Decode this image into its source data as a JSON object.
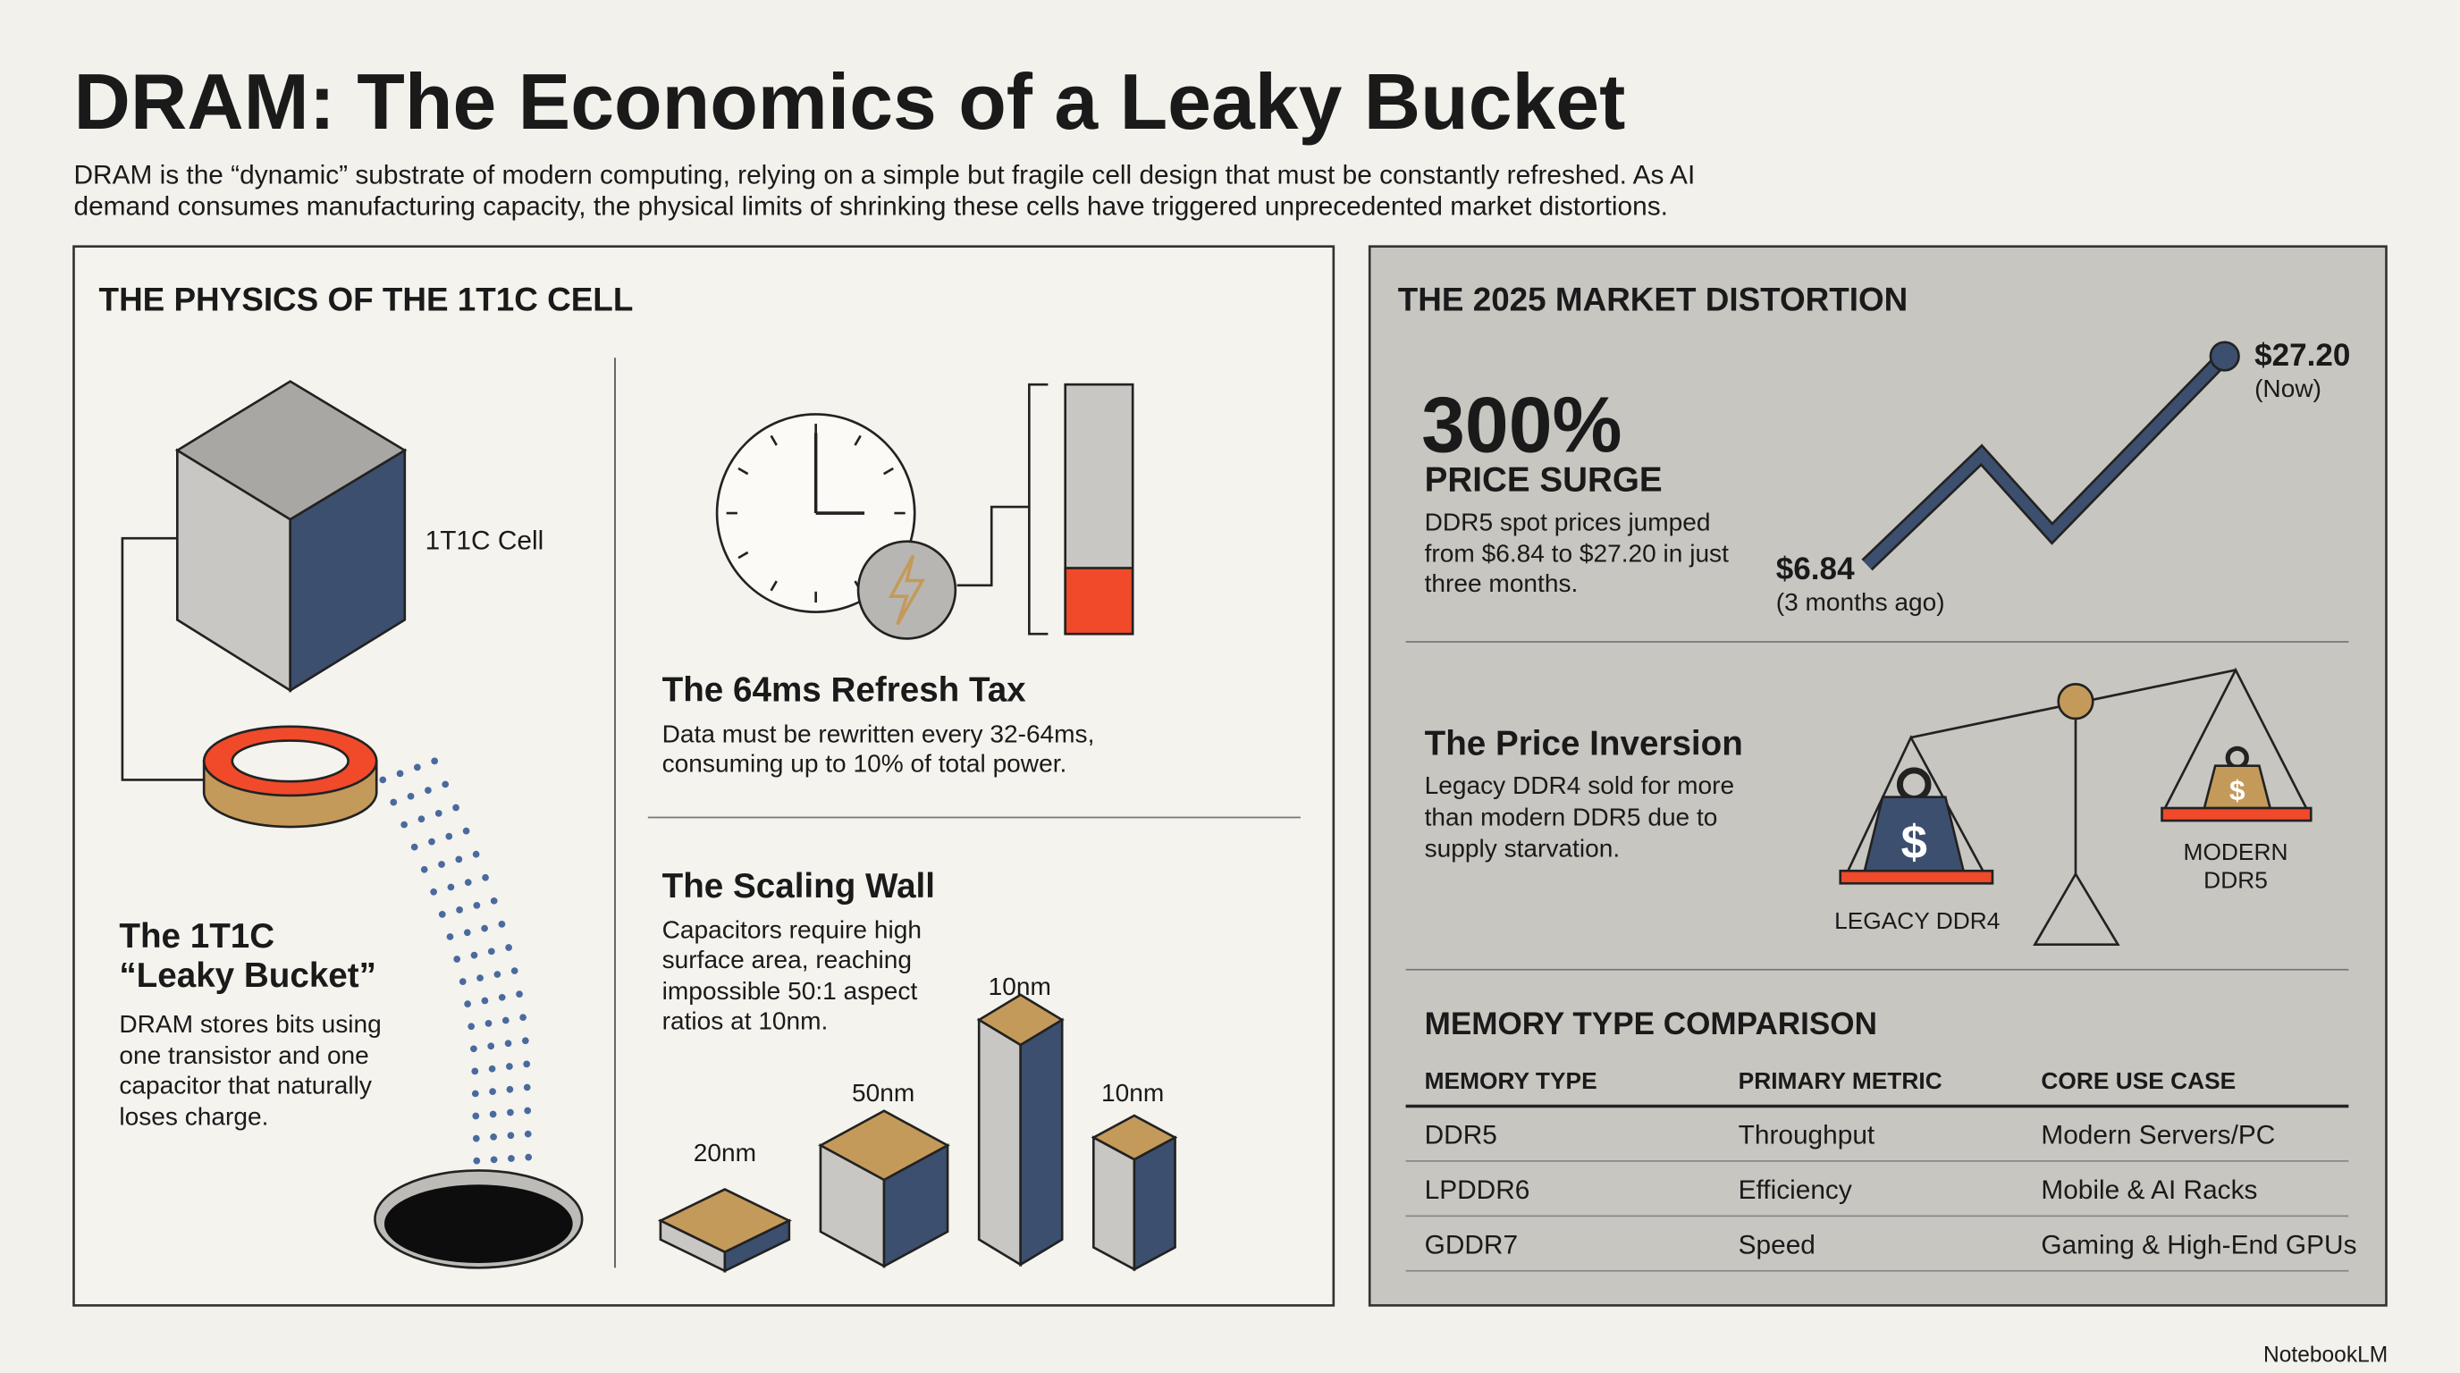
{
  "header": {
    "title": "DRAM: The Economics of a Leaky Bucket",
    "subtitle": [
      "DRAM is the “dynamic” substrate of modern computing, relying on a simple but fragile cell design that must be constantly refreshed. As AI",
      "demand consumes manufacturing capacity, the physical limits of shrinking these cells have triggered unprecedented market distortions."
    ]
  },
  "physics": {
    "heading": "THE PHYSICS OF THE 1T1C CELL",
    "cell_label": "1T1C Cell",
    "bucket": {
      "title": [
        "The 1T1C",
        "“Leaky Bucket”"
      ],
      "body": [
        "DRAM stores bits using",
        "one transistor and one",
        "capacitor that naturally",
        "loses charge."
      ]
    },
    "refresh": {
      "title": "The 64ms Refresh Tax",
      "body": [
        "Data must be rewritten every 32-64ms,",
        "consuming up to 10% of total power."
      ]
    },
    "scaling": {
      "title": "The Scaling Wall",
      "body": [
        "Capacitors require high",
        "surface area, reaching",
        "impossible 50:1 aspect",
        "ratios at 10nm."
      ],
      "labels": [
        "20nm",
        "50nm",
        "10nm",
        "10nm"
      ]
    }
  },
  "market": {
    "heading": "THE 2025 MARKET DISTORTION",
    "surge": {
      "big": "300%",
      "title": "PRICE SURGE",
      "body": [
        "DDR5 spot prices jumped",
        "from $6.84 to $27.20 in just",
        "three months."
      ],
      "now_price": "$27.20",
      "now_label": "(Now)",
      "then_price": "$6.84",
      "then_label": "(3 months ago)"
    },
    "inversion": {
      "title": "The Price Inversion",
      "body": [
        "Legacy DDR4 sold for more",
        "than modern DDR5 due to",
        "supply starvation."
      ],
      "left_label": "LEGACY DDR4",
      "right_label": [
        "MODERN",
        "DDR5"
      ],
      "symbol": "$"
    }
  },
  "table": {
    "title": "MEMORY TYPE COMPARISON",
    "headers": [
      "MEMORY TYPE",
      "PRIMARY METRIC",
      "CORE USE CASE"
    ],
    "rows": [
      [
        "DDR5",
        "Throughput",
        "Modern Servers/PC"
      ],
      [
        "LPDDR6",
        "Efficiency",
        "Mobile & AI Racks"
      ],
      [
        "GDDR7",
        "Speed",
        "Gaming & High-End GPUs"
      ]
    ]
  },
  "footer": "NotebookLM"
}
